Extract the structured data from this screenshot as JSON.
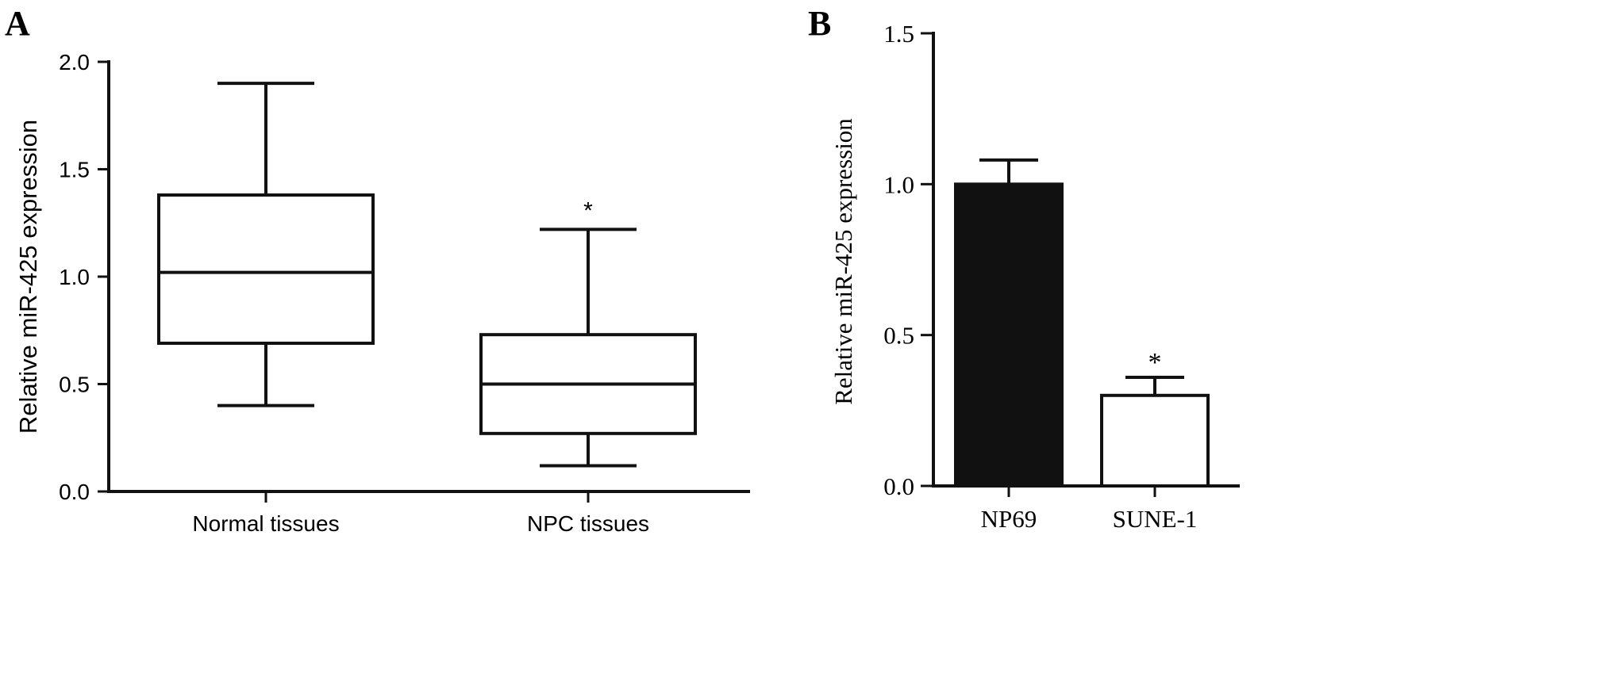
{
  "chart_data": [
    {
      "panel_label": "A",
      "type": "box",
      "title": "",
      "xlabel": "",
      "ylabel": "Relative miR-425 expression",
      "ylim": [
        0,
        2.0
      ],
      "yticks": [
        "0.0",
        "0.5",
        "1.0",
        "1.5",
        "2.0"
      ],
      "ytick_values": [
        0,
        0.5,
        1.0,
        1.5,
        2.0
      ],
      "categories": [
        "Normal tissues",
        "NPC tissues"
      ],
      "boxes": [
        {
          "name": "Normal tissues",
          "min": 0.4,
          "q1": 0.69,
          "median": 1.02,
          "q3": 1.38,
          "max": 1.9,
          "annotation": ""
        },
        {
          "name": "NPC tissues",
          "min": 0.12,
          "q1": 0.27,
          "median": 0.5,
          "q3": 0.73,
          "max": 1.22,
          "annotation": "*"
        }
      ],
      "grid": false
    },
    {
      "panel_label": "B",
      "type": "bar",
      "title": "",
      "xlabel": "",
      "ylabel": "Relative miR-425 expression",
      "ylim": [
        0,
        1.5
      ],
      "yticks": [
        "0.0",
        "0.5",
        "1.0",
        "1.5"
      ],
      "ytick_values": [
        0,
        0.5,
        1.0,
        1.5
      ],
      "categories": [
        "NP69",
        "SUNE-1"
      ],
      "values": [
        1.0,
        0.3
      ],
      "errors": [
        0.08,
        0.06
      ],
      "colors": [
        "#111111",
        "#ffffff"
      ],
      "annotations": [
        "",
        "*"
      ],
      "grid": false
    }
  ]
}
